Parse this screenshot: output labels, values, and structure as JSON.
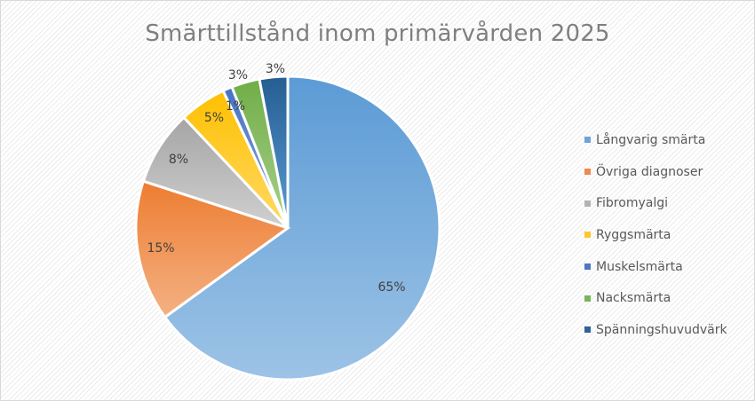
{
  "chart": {
    "title": "Smärttillstånd inom primärvården 2025",
    "legend": [
      {
        "label": "Långvarig smärta",
        "color": "#6fa2d8"
      },
      {
        "label": "Övriga diagnoser",
        "color": "#ed8a4e"
      },
      {
        "label": "Fibromyalgi",
        "color": "#b3b3b3"
      },
      {
        "label": "Ryggsmärta",
        "color": "#fec72d"
      },
      {
        "label": "Muskelsmärta",
        "color": "#4f76c4"
      },
      {
        "label": "Nacksmärta",
        "color": "#7bb35a"
      },
      {
        "label": "Spänningshuvudvärk",
        "color": "#2f6399"
      }
    ],
    "data_labels": [
      "65%",
      "15%",
      "8%",
      "5%",
      "1%",
      "3%",
      "3%"
    ]
  },
  "chart_data": {
    "type": "pie",
    "title": "Smärttillstånd inom primärvården 2025",
    "categories": [
      "Långvarig smärta",
      "Övriga diagnoser",
      "Fibromyalgi",
      "Ryggsmärta",
      "Muskelsmärta",
      "Nacksmärta",
      "Spänningshuvudvärk"
    ],
    "values": [
      65,
      15,
      8,
      5,
      1,
      3,
      3
    ],
    "unit": "%",
    "legend_position": "right",
    "start_angle": "12 o'clock, clockwise",
    "colors": [
      "#6fa2d8",
      "#ed8a4e",
      "#b3b3b3",
      "#fec72d",
      "#4f76c4",
      "#7bb35a",
      "#2f6399"
    ]
  }
}
